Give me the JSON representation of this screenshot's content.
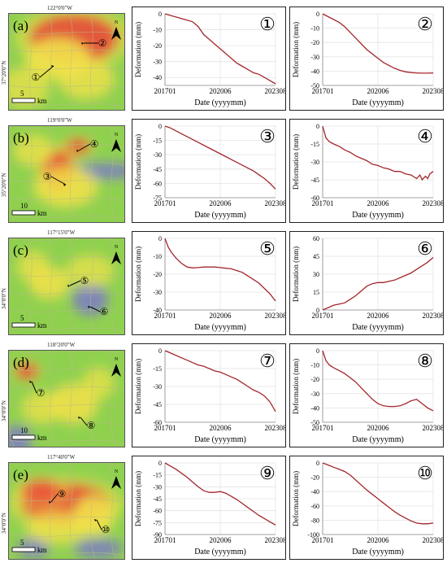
{
  "colors": {
    "line": "#a3262c",
    "grid": "#e3e3e3",
    "axis": "#888888",
    "map_green": "#8fd14f",
    "map_yellow": "#f2e24a",
    "map_red": "#e8423a",
    "map_blue": "#7a6fd8"
  },
  "maps": [
    {
      "letter": "(a)",
      "lon_label": "122°0'0\"W",
      "lat_label": "37°20'0\"N",
      "scale_label": "5",
      "scale_unit": "km",
      "north": "N",
      "points": [
        "①",
        "②"
      ]
    },
    {
      "letter": "(b)",
      "lon_label": "119°0'0\"W",
      "lat_label": "35°20'0\"N",
      "scale_label": "10",
      "scale_unit": "km",
      "north": "N",
      "points": [
        "③",
        "④"
      ]
    },
    {
      "letter": "(c)",
      "lon_label": "117°15'0\"W",
      "lat_label": "34°0'0\"N",
      "scale_label": "5",
      "scale_unit": "km",
      "north": "N",
      "points": [
        "⑤",
        "⑥"
      ]
    },
    {
      "letter": "(d)",
      "lon_label": "118°20'0\"W",
      "lat_label": "34°0'0\"N",
      "scale_label": "10",
      "scale_unit": "km",
      "north": "N",
      "points": [
        "⑦",
        "⑧"
      ]
    },
    {
      "letter": "(e)",
      "lon_label": "117°40'0\"W",
      "lat_label": "34°0'0\"N",
      "scale_label": "5",
      "scale_unit": "km",
      "north": "N",
      "points": [
        "⑨",
        "⑩"
      ]
    }
  ],
  "chart_data": [
    {
      "type": "line",
      "id": "①",
      "xlabel": "Date (yyyymm)",
      "ylabel": "Deformation (mm)",
      "x_ticks": [
        "201701",
        "202006",
        "202308"
      ],
      "xlim": [
        0,
        1
      ],
      "ylim": [
        -45,
        0
      ],
      "y_ticks": [
        0,
        -10,
        -20,
        -30,
        -40
      ],
      "x": [
        0,
        0.05,
        0.1,
        0.15,
        0.2,
        0.25,
        0.3,
        0.35,
        0.4,
        0.45,
        0.5,
        0.55,
        0.6,
        0.65,
        0.7,
        0.75,
        0.8,
        0.85,
        0.9,
        0.95,
        1.0
      ],
      "y": [
        0,
        -1,
        -2,
        -3,
        -4,
        -5,
        -8,
        -13,
        -16,
        -19,
        -22,
        -25,
        -28,
        -31,
        -33,
        -35,
        -37,
        -38,
        -40,
        -42,
        -44
      ]
    },
    {
      "type": "line",
      "id": "②",
      "xlabel": "Date (yyyymm)",
      "ylabel": "Deformation (mm)",
      "x_ticks": [
        "201701",
        "202006",
        "202308"
      ],
      "xlim": [
        0,
        1
      ],
      "ylim": [
        -50,
        0
      ],
      "y_ticks": [
        0,
        -10,
        -20,
        -30,
        -40,
        -50
      ],
      "x": [
        0,
        0.05,
        0.1,
        0.15,
        0.2,
        0.25,
        0.3,
        0.35,
        0.4,
        0.45,
        0.5,
        0.55,
        0.6,
        0.65,
        0.7,
        0.75,
        0.8,
        0.85,
        0.9,
        0.95,
        1.0
      ],
      "y": [
        0,
        -2,
        -4,
        -6,
        -9,
        -13,
        -17,
        -21,
        -25,
        -28,
        -31,
        -34,
        -36,
        -38,
        -39.5,
        -40.5,
        -41,
        -41.3,
        -41.4,
        -41.4,
        -41.3
      ]
    },
    {
      "type": "line",
      "id": "③",
      "xlabel": "Date (yyyymm)",
      "ylabel": "Deformation (mm)",
      "x_ticks": [
        "201701",
        "202006",
        "202308"
      ],
      "xlim": [
        0,
        1
      ],
      "ylim": [
        -75,
        0
      ],
      "y_ticks": [
        0,
        -15,
        -30,
        -45,
        -60,
        -75
      ],
      "x": [
        0,
        0.05,
        0.1,
        0.15,
        0.2,
        0.25,
        0.3,
        0.35,
        0.4,
        0.45,
        0.5,
        0.55,
        0.6,
        0.65,
        0.7,
        0.75,
        0.8,
        0.85,
        0.9,
        0.95,
        1.0
      ],
      "y": [
        0,
        -2,
        -5,
        -8,
        -11,
        -14,
        -17,
        -20,
        -23,
        -26,
        -29,
        -32,
        -35,
        -38,
        -41,
        -44,
        -47,
        -51,
        -55,
        -60,
        -66
      ]
    },
    {
      "type": "line",
      "id": "④",
      "xlabel": "Date (yyyymm)",
      "ylabel": "Deformation (mm)",
      "x_ticks": [
        "201701",
        "202006",
        "202308"
      ],
      "xlim": [
        0,
        1
      ],
      "ylim": [
        -60,
        0
      ],
      "y_ticks": [
        0,
        -15,
        -30,
        -45,
        -60
      ],
      "x": [
        0,
        0.03,
        0.06,
        0.1,
        0.15,
        0.2,
        0.25,
        0.3,
        0.35,
        0.4,
        0.45,
        0.5,
        0.55,
        0.6,
        0.65,
        0.7,
        0.75,
        0.8,
        0.85,
        0.88,
        0.9,
        0.93,
        0.95,
        0.97,
        1.0
      ],
      "y": [
        0,
        -10,
        -13,
        -15,
        -17,
        -20,
        -22,
        -25,
        -27,
        -29,
        -32,
        -33,
        -35,
        -36,
        -38,
        -38,
        -40,
        -41,
        -44,
        -41,
        -45,
        -42,
        -44,
        -40,
        -38
      ]
    },
    {
      "type": "line",
      "id": "⑤",
      "xlabel": "Date (yyyymm)",
      "ylabel": "Deformation (mm)",
      "x_ticks": [
        "201701",
        "202006",
        "202308"
      ],
      "xlim": [
        0,
        1
      ],
      "ylim": [
        -40,
        0
      ],
      "y_ticks": [
        0,
        -10,
        -20,
        -30,
        -40
      ],
      "x": [
        0,
        0.03,
        0.06,
        0.1,
        0.15,
        0.2,
        0.25,
        0.3,
        0.35,
        0.4,
        0.45,
        0.5,
        0.55,
        0.6,
        0.65,
        0.7,
        0.75,
        0.8,
        0.85,
        0.9,
        0.95,
        1.0
      ],
      "y": [
        0,
        -5,
        -8,
        -11,
        -14,
        -16,
        -16.5,
        -16.3,
        -16,
        -16,
        -16,
        -16.3,
        -16.7,
        -17,
        -18,
        -19,
        -21,
        -23,
        -25,
        -28,
        -31,
        -35
      ]
    },
    {
      "type": "line",
      "id": "⑥",
      "xlabel": "Date (yyyymm)",
      "ylabel": "Deformation (mm)",
      "x_ticks": [
        "201701",
        "202006",
        "202308"
      ],
      "xlim": [
        0,
        1
      ],
      "ylim": [
        0,
        60
      ],
      "y_ticks": [
        0,
        15,
        30,
        45,
        60
      ],
      "x": [
        0,
        0.05,
        0.1,
        0.15,
        0.2,
        0.25,
        0.3,
        0.35,
        0.4,
        0.45,
        0.5,
        0.55,
        0.6,
        0.65,
        0.7,
        0.75,
        0.8,
        0.85,
        0.9,
        0.95,
        1.0
      ],
      "y": [
        0,
        2,
        4,
        5,
        6,
        9,
        12,
        16,
        20,
        22,
        23,
        23,
        24,
        25,
        27,
        29,
        31,
        34,
        37,
        40,
        44
      ]
    },
    {
      "type": "line",
      "id": "⑦",
      "xlabel": "Date (yyyymm)",
      "ylabel": "Deformation (mm)",
      "x_ticks": [
        "201701",
        "202006",
        "202308"
      ],
      "xlim": [
        0,
        1
      ],
      "ylim": [
        -60,
        0
      ],
      "y_ticks": [
        0,
        -15,
        -30,
        -45,
        -60
      ],
      "x": [
        0,
        0.05,
        0.1,
        0.15,
        0.2,
        0.25,
        0.3,
        0.35,
        0.4,
        0.45,
        0.5,
        0.55,
        0.6,
        0.65,
        0.7,
        0.75,
        0.8,
        0.85,
        0.9,
        0.95,
        1.0
      ],
      "y": [
        0,
        -2,
        -4,
        -6,
        -8,
        -10,
        -12,
        -13,
        -15,
        -17,
        -18,
        -20,
        -22,
        -24,
        -27,
        -30,
        -33,
        -35,
        -38,
        -43,
        -51
      ]
    },
    {
      "type": "line",
      "id": "⑧",
      "xlabel": "Date (yyyymm)",
      "ylabel": "Deformation (mm)",
      "x_ticks": [
        "201701",
        "202006",
        "202308"
      ],
      "xlim": [
        0,
        1
      ],
      "ylim": [
        -50,
        0
      ],
      "y_ticks": [
        0,
        -10,
        -20,
        -30,
        -40,
        -50
      ],
      "x": [
        0,
        0.03,
        0.06,
        0.1,
        0.15,
        0.2,
        0.25,
        0.3,
        0.35,
        0.4,
        0.45,
        0.5,
        0.55,
        0.6,
        0.65,
        0.7,
        0.75,
        0.8,
        0.85,
        0.9,
        0.95,
        1.0
      ],
      "y": [
        0,
        -7,
        -10,
        -12,
        -14,
        -16,
        -19,
        -22,
        -26,
        -30,
        -34,
        -37,
        -38.5,
        -39,
        -39,
        -38.5,
        -37,
        -35,
        -34,
        -37,
        -40,
        -42
      ]
    },
    {
      "type": "line",
      "id": "⑨",
      "xlabel": "Date (yyyymm)",
      "ylabel": "Deformation (mm)",
      "x_ticks": [
        "201701",
        "202006",
        "202308"
      ],
      "xlim": [
        0,
        1
      ],
      "ylim": [
        -90,
        0
      ],
      "y_ticks": [
        0,
        -15,
        -30,
        -45,
        -60,
        -75,
        -90
      ],
      "x": [
        0,
        0.05,
        0.1,
        0.15,
        0.2,
        0.25,
        0.3,
        0.35,
        0.4,
        0.45,
        0.5,
        0.55,
        0.6,
        0.65,
        0.7,
        0.75,
        0.8,
        0.85,
        0.9,
        0.95,
        1.0
      ],
      "y": [
        0,
        -4,
        -8,
        -13,
        -18,
        -24,
        -30,
        -35,
        -37,
        -37,
        -36,
        -38,
        -42,
        -46,
        -51,
        -56,
        -61,
        -66,
        -70,
        -74,
        -78
      ]
    },
    {
      "type": "line",
      "id": "⑩",
      "xlabel": "Date (yyyymm)",
      "ylabel": "Deformation (mm)",
      "x_ticks": [
        "201701",
        "202006",
        "202308"
      ],
      "xlim": [
        0,
        1
      ],
      "ylim": [
        -100,
        0
      ],
      "y_ticks": [
        0,
        -20,
        -40,
        -60,
        -80,
        -100
      ],
      "x": [
        0,
        0.05,
        0.1,
        0.15,
        0.2,
        0.25,
        0.3,
        0.35,
        0.4,
        0.45,
        0.5,
        0.55,
        0.6,
        0.65,
        0.7,
        0.75,
        0.8,
        0.85,
        0.9,
        0.95,
        1.0
      ],
      "y": [
        0,
        -3,
        -6,
        -9,
        -12,
        -17,
        -24,
        -31,
        -38,
        -44,
        -50,
        -56,
        -62,
        -68,
        -73,
        -77,
        -81,
        -84,
        -85,
        -85,
        -84
      ]
    }
  ]
}
